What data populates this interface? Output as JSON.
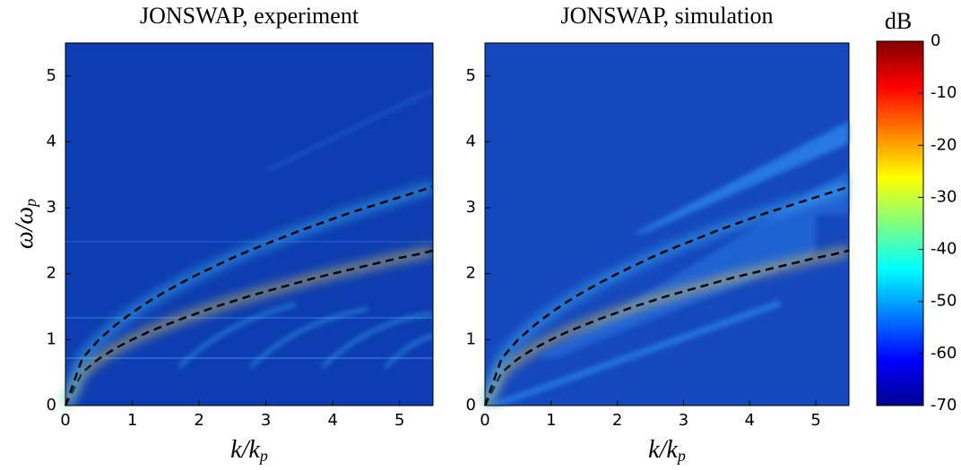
{
  "chart_data": [
    {
      "type": "line",
      "title": "JONSWAP, experiment",
      "background_color": "#0d3db0",
      "xlabel": {
        "main": "k/k",
        "sub": "p"
      },
      "ylabel": {
        "main": "ω/ω",
        "sub": "p"
      },
      "xlim": [
        0,
        5.5
      ],
      "ylim": [
        0,
        5.5
      ],
      "xticks": [
        0,
        1,
        2,
        3,
        4,
        5
      ],
      "yticks": [
        0,
        1,
        2,
        3,
        4,
        5
      ],
      "x": [
        0,
        0.25,
        0.5,
        0.75,
        1,
        1.25,
        1.5,
        1.75,
        2,
        2.25,
        2.5,
        2.75,
        3,
        3.25,
        3.5,
        3.75,
        4,
        4.25,
        4.5,
        4.75,
        5,
        5.25,
        5.5
      ],
      "series": [
        {
          "color": "#000000",
          "values": [
            0,
            0.5,
            0.71,
            0.87,
            1,
            1.12,
            1.22,
            1.32,
            1.41,
            1.5,
            1.58,
            1.66,
            1.73,
            1.8,
            1.87,
            1.94,
            2,
            2.06,
            2.12,
            2.18,
            2.24,
            2.29,
            2.35
          ]
        },
        {
          "color": "#000000",
          "values": [
            0,
            0.71,
            1,
            1.22,
            1.41,
            1.58,
            1.73,
            1.87,
            2,
            2.12,
            2.24,
            2.35,
            2.45,
            2.55,
            2.65,
            2.74,
            2.83,
            2.92,
            3,
            3.08,
            3.16,
            3.24,
            3.32
          ]
        }
      ]
    },
    {
      "type": "line",
      "title": "JONSWAP, simulation",
      "background_color": "#1548bd",
      "xlabel": {
        "main": "k/k",
        "sub": "p"
      },
      "xlim": [
        0,
        5.5
      ],
      "ylim": [
        0,
        5.5
      ],
      "xticks": [
        0,
        1,
        2,
        3,
        4,
        5
      ],
      "yticks": [
        0,
        1,
        2,
        3,
        4,
        5
      ],
      "x": [
        0,
        0.25,
        0.5,
        0.75,
        1,
        1.25,
        1.5,
        1.75,
        2,
        2.25,
        2.5,
        2.75,
        3,
        3.25,
        3.5,
        3.75,
        4,
        4.25,
        4.5,
        4.75,
        5,
        5.25,
        5.5
      ],
      "series": [
        {
          "color": "#000000",
          "values": [
            0,
            0.5,
            0.71,
            0.87,
            1,
            1.12,
            1.22,
            1.32,
            1.41,
            1.5,
            1.58,
            1.66,
            1.73,
            1.8,
            1.87,
            1.94,
            2,
            2.06,
            2.12,
            2.18,
            2.24,
            2.29,
            2.35
          ]
        },
        {
          "color": "#000000",
          "values": [
            0,
            0.71,
            1,
            1.22,
            1.41,
            1.58,
            1.73,
            1.87,
            2,
            2.12,
            2.24,
            2.35,
            2.45,
            2.55,
            2.65,
            2.74,
            2.83,
            2.92,
            3,
            3.08,
            3.16,
            3.24,
            3.32
          ]
        }
      ]
    },
    {
      "type": "colorbar",
      "label": "dB",
      "clim": [
        -70,
        0
      ],
      "ticks": [
        0,
        -10,
        -20,
        -30,
        -40,
        -50,
        -60,
        -70
      ],
      "colormap": [
        "#00008f",
        "#0000ff",
        "#0080ff",
        "#00ffff",
        "#80ff80",
        "#ffff00",
        "#ff8000",
        "#ff0000",
        "#800000"
      ]
    }
  ]
}
